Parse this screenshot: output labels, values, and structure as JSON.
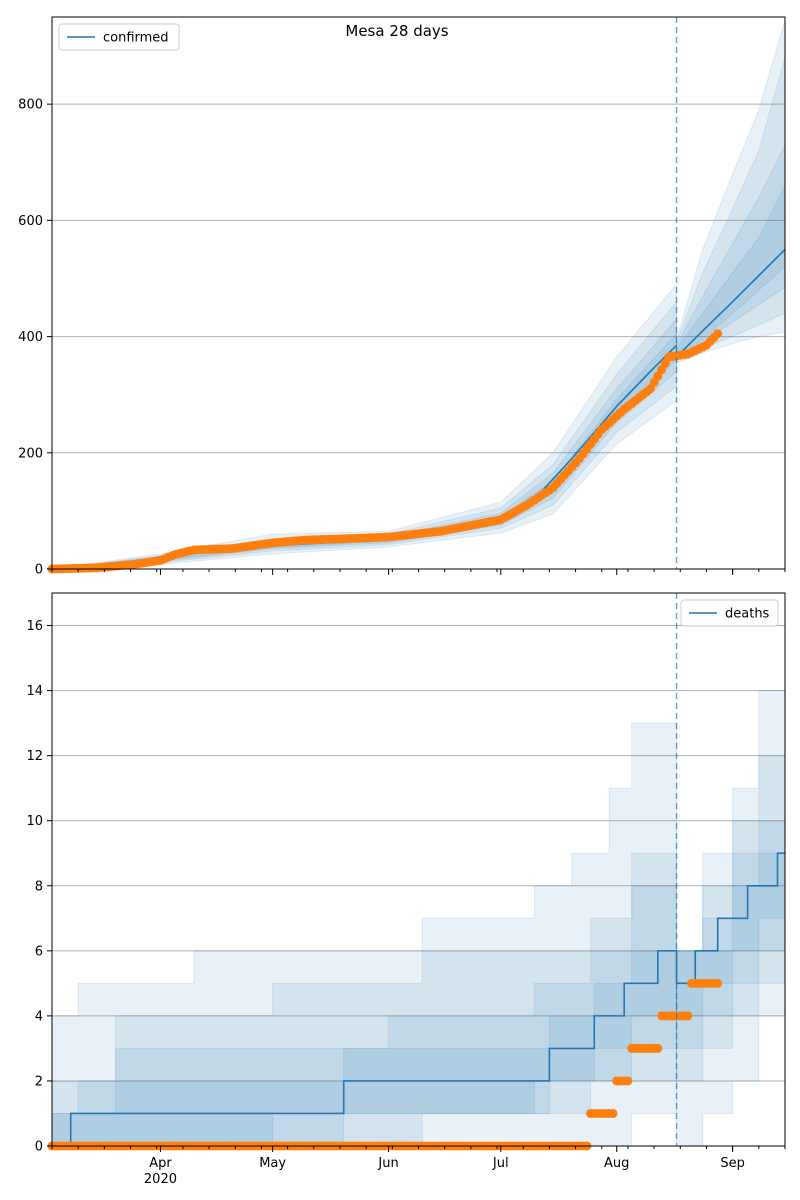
{
  "figure": {
    "title": "Mesa 28 days"
  },
  "colors": {
    "model": "#1f77b4",
    "observed": "#ff7f0e",
    "band": "#1f77b4",
    "grid": "#b0b0b0",
    "axis": "#000000"
  },
  "chart_data": [
    {
      "type": "line",
      "panel": "top",
      "title": "Mesa 28 days",
      "xlabel": "",
      "ylabel": "",
      "x_axis": {
        "type": "date",
        "range": [
          "2020-03-03",
          "2020-09-15"
        ],
        "tick_labels": [
          {
            "date": "2020-04-01",
            "label": "Apr",
            "sublabel": "2020"
          },
          {
            "date": "2020-05-01",
            "label": "May",
            "sublabel": ""
          },
          {
            "date": "2020-06-01",
            "label": "Jun",
            "sublabel": ""
          },
          {
            "date": "2020-07-01",
            "label": "Jul",
            "sublabel": ""
          },
          {
            "date": "2020-08-01",
            "label": "Aug",
            "sublabel": ""
          },
          {
            "date": "2020-09-01",
            "label": "Sep",
            "sublabel": ""
          }
        ]
      },
      "ylim": [
        0,
        950
      ],
      "yticks": [
        0,
        200,
        400,
        600,
        800
      ],
      "grid": "horizontal",
      "legend": {
        "position": "top-left",
        "entries": [
          "confirmed"
        ]
      },
      "forecast_start": "2020-08-17",
      "series": [
        {
          "name": "confirmed",
          "role": "model median",
          "x": [
            "2020-03-03",
            "2020-03-15",
            "2020-04-01",
            "2020-04-15",
            "2020-05-01",
            "2020-05-15",
            "2020-06-01",
            "2020-06-15",
            "2020-07-01",
            "2020-07-10",
            "2020-07-20",
            "2020-08-01",
            "2020-08-10",
            "2020-08-17",
            "2020-08-17",
            "2020-08-24",
            "2020-09-01",
            "2020-09-08",
            "2020-09-15"
          ],
          "y": [
            0,
            5,
            18,
            32,
            40,
            45,
            50,
            60,
            85,
            120,
            190,
            280,
            340,
            385,
            365,
            410,
            460,
            505,
            550
          ]
        },
        {
          "name": "",
          "role": "observed",
          "x": [
            "2020-03-03",
            "2020-03-15",
            "2020-03-25",
            "2020-04-01",
            "2020-04-05",
            "2020-04-10",
            "2020-04-20",
            "2020-05-01",
            "2020-05-10",
            "2020-05-20",
            "2020-06-01",
            "2020-06-15",
            "2020-07-01",
            "2020-07-08",
            "2020-07-15",
            "2020-07-22",
            "2020-07-28",
            "2020-08-03",
            "2020-08-10",
            "2020-08-15",
            "2020-08-20",
            "2020-08-25",
            "2020-08-28"
          ],
          "y": [
            0,
            2,
            8,
            15,
            25,
            33,
            35,
            45,
            50,
            52,
            55,
            65,
            85,
            110,
            140,
            190,
            240,
            275,
            310,
            365,
            370,
            385,
            405
          ]
        }
      ],
      "bands": [
        {
          "x": [
            "2020-03-03",
            "2020-04-01",
            "2020-05-01",
            "2020-06-01",
            "2020-07-01",
            "2020-07-15",
            "2020-08-01",
            "2020-08-17"
          ],
          "lower": [
            0,
            8,
            26,
            38,
            62,
            95,
            215,
            290
          ],
          "upper": [
            0,
            26,
            60,
            65,
            115,
            200,
            365,
            490
          ]
        },
        {
          "x": [
            "2020-03-03",
            "2020-04-01",
            "2020-05-01",
            "2020-06-01",
            "2020-07-01",
            "2020-07-15",
            "2020-08-01",
            "2020-08-17"
          ],
          "lower": [
            0,
            11,
            31,
            42,
            70,
            110,
            235,
            315
          ],
          "upper": [
            0,
            23,
            52,
            60,
            105,
            180,
            335,
            460
          ]
        },
        {
          "x": [
            "2020-03-03",
            "2020-04-01",
            "2020-05-01",
            "2020-06-01",
            "2020-07-01",
            "2020-07-15",
            "2020-08-01",
            "2020-08-17"
          ],
          "lower": [
            0,
            13,
            35,
            45,
            76,
            122,
            252,
            340
          ],
          "upper": [
            0,
            21,
            47,
            56,
            96,
            165,
            310,
            430
          ]
        },
        {
          "x": [
            "2020-03-03",
            "2020-04-01",
            "2020-05-01",
            "2020-06-01",
            "2020-07-01",
            "2020-07-15",
            "2020-08-01",
            "2020-08-17"
          ],
          "lower": [
            0,
            15,
            37,
            48,
            80,
            132,
            265,
            360
          ],
          "upper": [
            0,
            20,
            44,
            53,
            90,
            152,
            292,
            405
          ]
        },
        {
          "x": [
            "2020-08-17",
            "2020-08-24",
            "2020-09-01",
            "2020-09-08",
            "2020-09-15"
          ],
          "lower": [
            355,
            372,
            388,
            400,
            408
          ],
          "upper": [
            395,
            550,
            680,
            790,
            945
          ]
        },
        {
          "x": [
            "2020-08-17",
            "2020-08-24",
            "2020-09-01",
            "2020-09-08",
            "2020-09-15"
          ],
          "lower": [
            358,
            380,
            400,
            420,
            440
          ],
          "upper": [
            390,
            510,
            620,
            720,
            880
          ]
        },
        {
          "x": [
            "2020-08-17",
            "2020-08-24",
            "2020-09-01",
            "2020-09-08",
            "2020-09-15"
          ],
          "lower": [
            360,
            390,
            425,
            455,
            485
          ],
          "upper": [
            385,
            470,
            560,
            640,
            730
          ]
        },
        {
          "x": [
            "2020-08-17",
            "2020-08-24",
            "2020-09-01",
            "2020-09-08",
            "2020-09-15"
          ],
          "lower": [
            362,
            395,
            440,
            480,
            520
          ],
          "upper": [
            380,
            440,
            510,
            570,
            660
          ]
        }
      ]
    },
    {
      "type": "line",
      "panel": "bottom",
      "title": "",
      "xlabel": "",
      "ylabel": "",
      "x_axis": {
        "type": "date",
        "range": [
          "2020-03-03",
          "2020-09-15"
        ],
        "tick_labels": [
          {
            "date": "2020-04-01",
            "label": "Apr",
            "sublabel": "2020"
          },
          {
            "date": "2020-05-01",
            "label": "May",
            "sublabel": ""
          },
          {
            "date": "2020-06-01",
            "label": "Jun",
            "sublabel": ""
          },
          {
            "date": "2020-07-01",
            "label": "Jul",
            "sublabel": ""
          },
          {
            "date": "2020-08-01",
            "label": "Aug",
            "sublabel": ""
          },
          {
            "date": "2020-09-01",
            "label": "Sep",
            "sublabel": ""
          }
        ]
      },
      "ylim": [
        0,
        17
      ],
      "yticks": [
        0,
        2,
        4,
        6,
        8,
        10,
        12,
        14,
        16
      ],
      "grid": "horizontal",
      "legend": {
        "position": "top-right",
        "entries": [
          "deaths"
        ]
      },
      "forecast_start": "2020-08-17",
      "series": [
        {
          "name": "deaths",
          "role": "model median (step)",
          "x": [
            "2020-03-08",
            "2020-05-20",
            "2020-07-14",
            "2020-07-26",
            "2020-08-03",
            "2020-08-12",
            "2020-08-17",
            "2020-08-22",
            "2020-08-28",
            "2020-09-05",
            "2020-09-13"
          ],
          "y": [
            1,
            2,
            3,
            4,
            5,
            6,
            5,
            6,
            7,
            8,
            9
          ]
        },
        {
          "name": "",
          "role": "observed",
          "x": [
            "2020-03-03",
            "2020-03-20",
            "2020-04-10",
            "2020-05-01",
            "2020-05-20",
            "2020-06-10",
            "2020-07-01",
            "2020-07-20",
            "2020-07-24",
            "2020-07-27",
            "2020-07-31",
            "2020-08-04",
            "2020-08-08",
            "2020-08-12",
            "2020-08-16",
            "2020-08-20",
            "2020-08-24",
            "2020-08-28"
          ],
          "y": [
            0,
            0,
            0,
            0,
            0,
            0,
            0,
            0,
            1,
            1,
            2,
            3,
            3,
            4,
            4,
            5,
            5,
            5
          ]
        }
      ],
      "bands": [
        {
          "x": [
            "2020-03-03",
            "2020-03-10",
            "2020-04-10",
            "2020-06-10",
            "2020-07-10",
            "2020-07-20",
            "2020-07-30",
            "2020-08-05",
            "2020-08-17"
          ],
          "lower": [
            0,
            0,
            0,
            0,
            0,
            0,
            0,
            1,
            2
          ],
          "upper": [
            4,
            5,
            6,
            7,
            8,
            9,
            11,
            13,
            13
          ]
        },
        {
          "x": [
            "2020-03-03",
            "2020-03-20",
            "2020-05-01",
            "2020-06-10",
            "2020-07-10",
            "2020-07-25",
            "2020-08-05",
            "2020-08-17"
          ],
          "lower": [
            0,
            0,
            0,
            1,
            1,
            2,
            2,
            3
          ],
          "upper": [
            2,
            4,
            5,
            6,
            6,
            7,
            9,
            10
          ]
        },
        {
          "x": [
            "2020-03-03",
            "2020-03-20",
            "2020-05-01",
            "2020-06-01",
            "2020-07-10",
            "2020-07-25",
            "2020-08-05",
            "2020-08-17"
          ],
          "lower": [
            0,
            0,
            1,
            1,
            2,
            2,
            3,
            4
          ],
          "upper": [
            1,
            3,
            3,
            4,
            5,
            6,
            8,
            9
          ]
        },
        {
          "x": [
            "2020-03-03",
            "2020-03-10",
            "2020-05-20",
            "2020-07-14",
            "2020-07-26",
            "2020-08-05",
            "2020-08-17"
          ],
          "lower": [
            0,
            0,
            1,
            2,
            3,
            4,
            5
          ],
          "upper": [
            1,
            2,
            3,
            4,
            5,
            6,
            7
          ]
        },
        {
          "x": [
            "2020-08-17",
            "2020-08-24",
            "2020-09-01",
            "2020-09-08",
            "2020-09-15"
          ],
          "lower": [
            0,
            1,
            2,
            4,
            5
          ],
          "upper": [
            6,
            9,
            11,
            14,
            17
          ]
        },
        {
          "x": [
            "2020-08-17",
            "2020-08-24",
            "2020-09-01",
            "2020-09-08",
            "2020-09-15"
          ],
          "lower": [
            2,
            3,
            4,
            5,
            6
          ],
          "upper": [
            6,
            8,
            10,
            12,
            14
          ]
        },
        {
          "x": [
            "2020-08-17",
            "2020-08-24",
            "2020-09-01",
            "2020-09-08",
            "2020-09-15"
          ],
          "lower": [
            3,
            4,
            5,
            6,
            7
          ],
          "upper": [
            6,
            7,
            9,
            10,
            11
          ]
        },
        {
          "x": [
            "2020-08-17",
            "2020-08-24",
            "2020-09-01",
            "2020-09-08",
            "2020-09-15"
          ],
          "lower": [
            4,
            5,
            6,
            7,
            8
          ],
          "upper": [
            6,
            6,
            8,
            9,
            10
          ]
        }
      ]
    }
  ]
}
